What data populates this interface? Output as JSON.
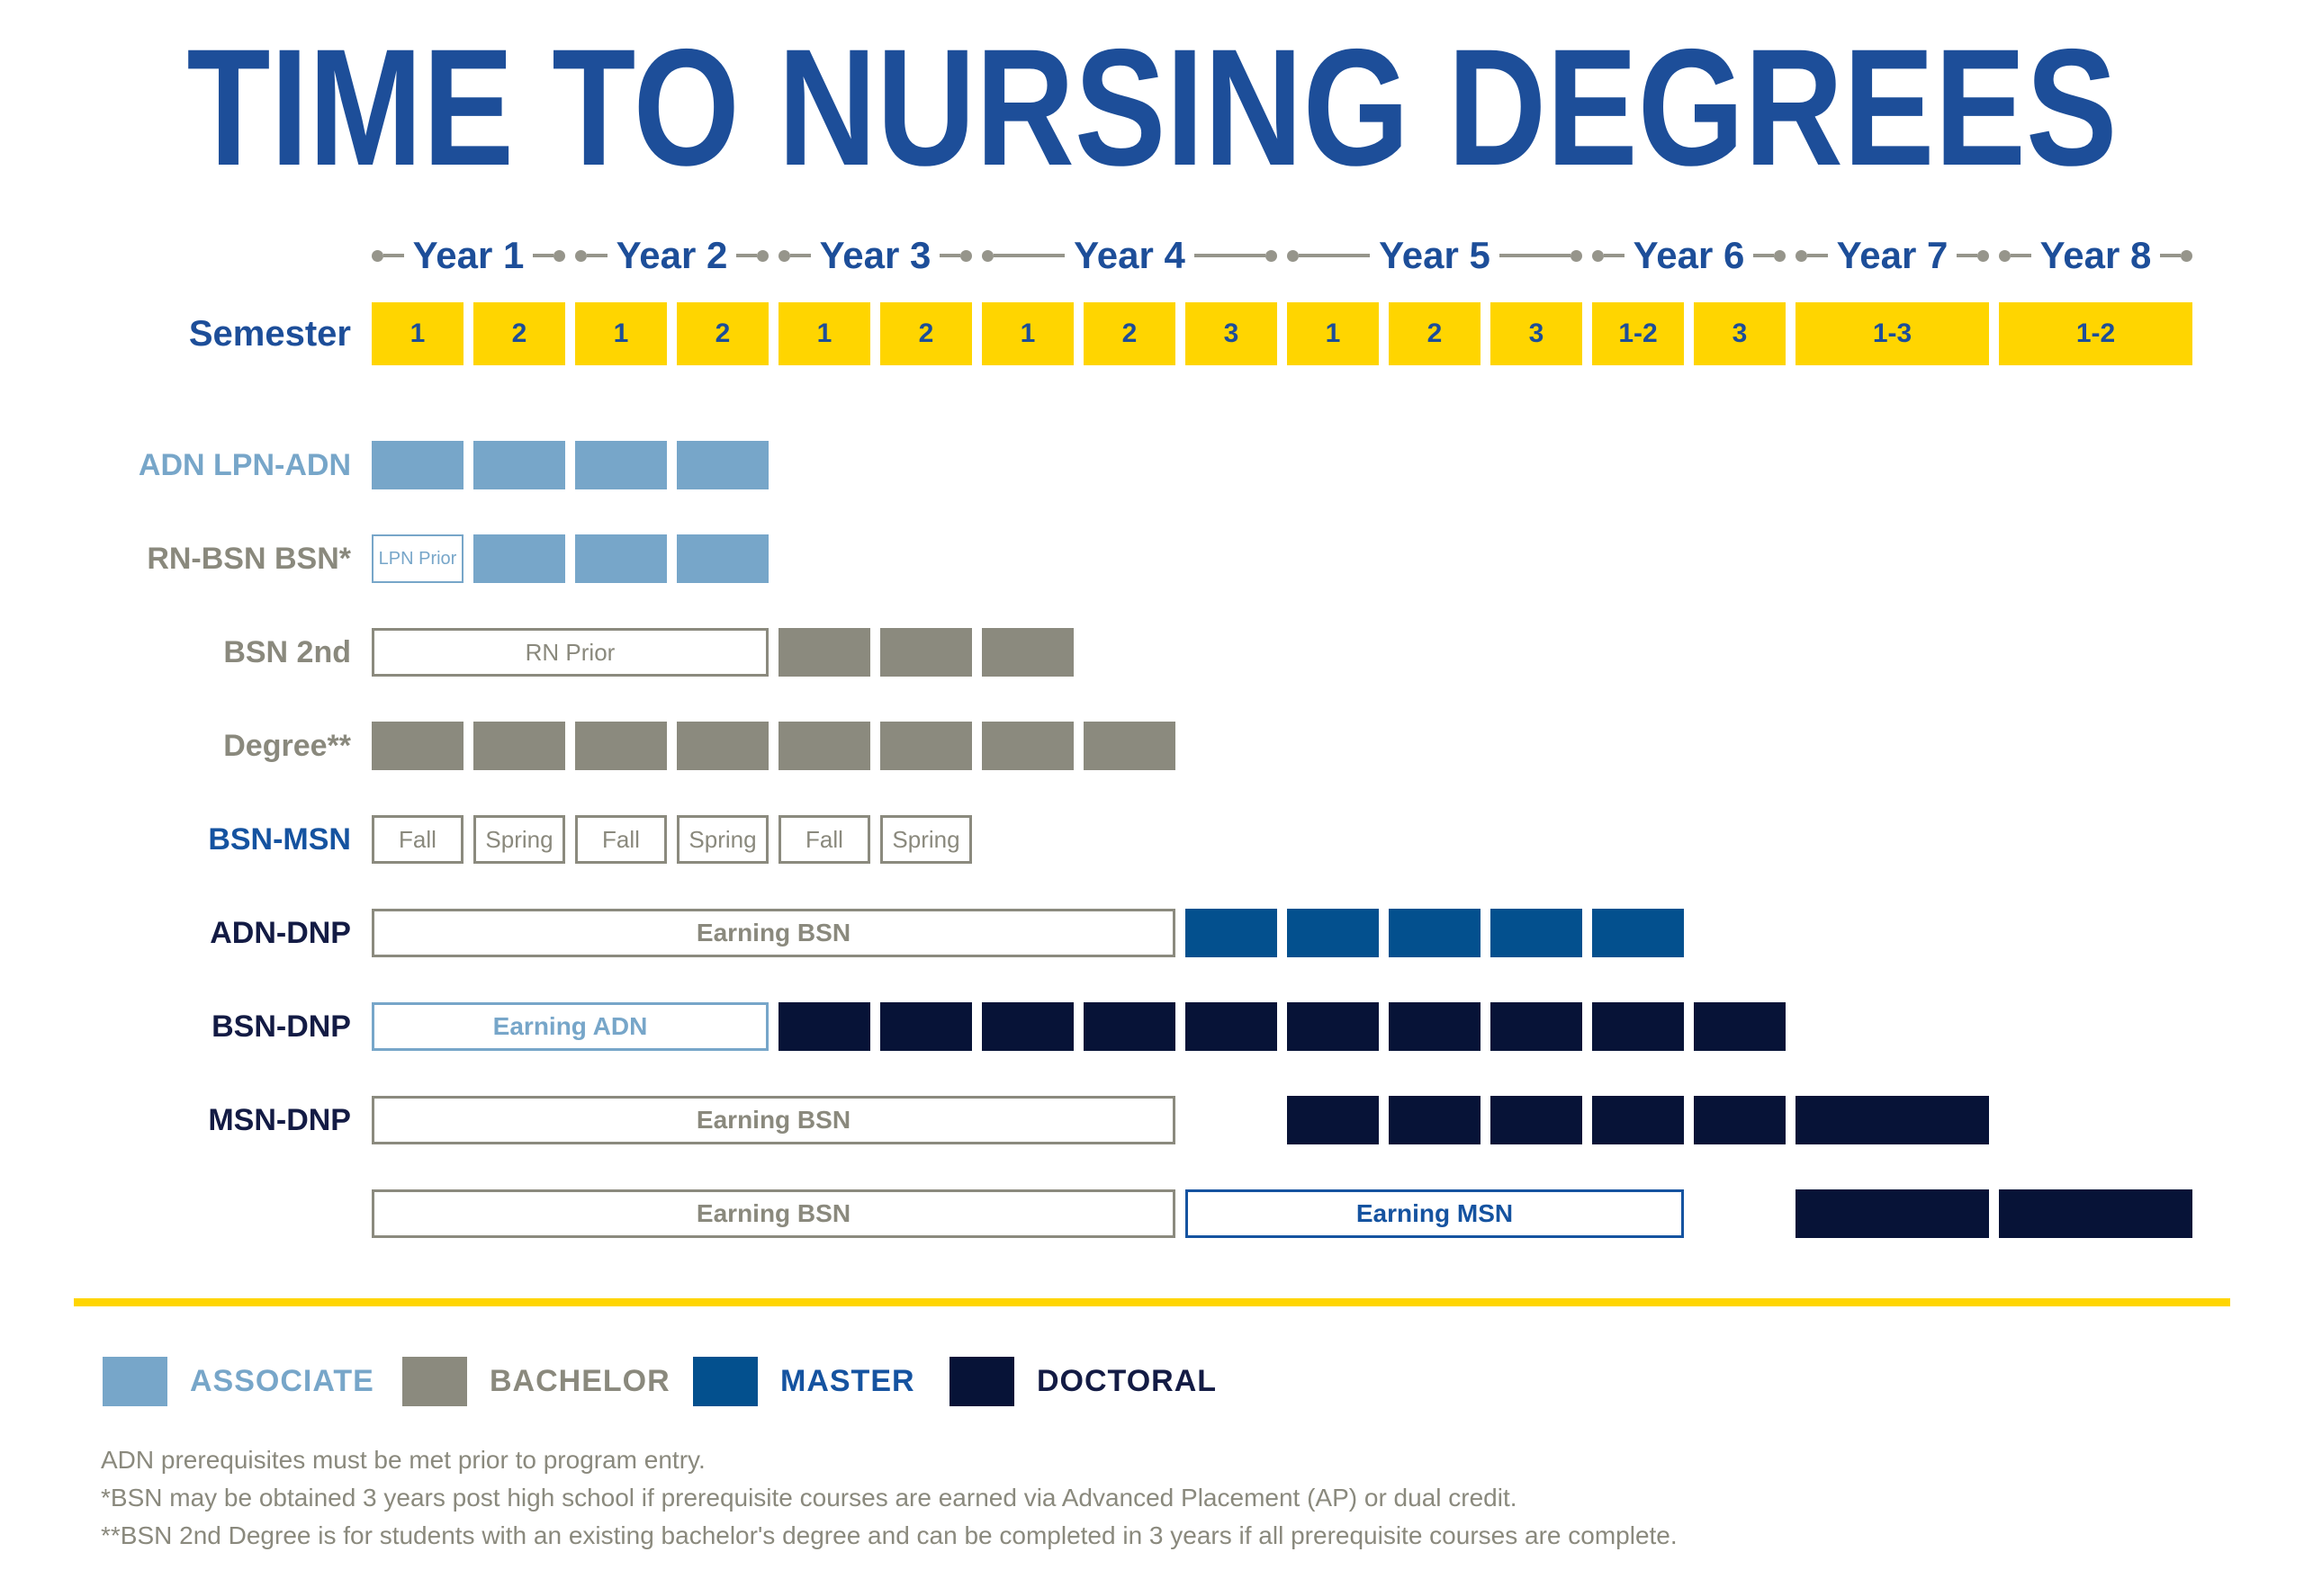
{
  "title": "TIME TO NURSING DEGREES",
  "colors": {
    "blue": "#1d4e99",
    "yellow": "#ffd500",
    "associate": "#77a6c9",
    "bachelor": "#8b8a7e",
    "gray_text": "#8a897d",
    "master": "#03508e",
    "master_text": "#1553a0",
    "doctoral": "#071337",
    "doctoral_text": "#131b44",
    "marker_gray": "#96958b"
  },
  "timeline": {
    "semester_label": "Semester",
    "years": [
      {
        "label": "Year 1",
        "col": 1,
        "span": 2
      },
      {
        "label": "Year 2",
        "col": 3,
        "span": 2
      },
      {
        "label": "Year 3",
        "col": 5,
        "span": 2
      },
      {
        "label": "Year 4",
        "col": 7,
        "span": 3
      },
      {
        "label": "Year 5",
        "col": 10,
        "span": 3
      },
      {
        "label": "Year 6",
        "col": 13,
        "span": 2
      },
      {
        "label": "Year 7",
        "col": 15,
        "span": 1
      },
      {
        "label": "Year 8",
        "col": 16,
        "span": 1
      }
    ],
    "semesters": [
      "1",
      "2",
      "1",
      "2",
      "1",
      "2",
      "1",
      "2",
      "3",
      "1",
      "2",
      "3",
      "1-2",
      "3",
      "1-3",
      "1-2"
    ]
  },
  "rows": [
    {
      "label": "ADN LPN-ADN",
      "label_color": "associate",
      "cells": [
        {
          "type": "bar",
          "color": "associate",
          "col": 1
        },
        {
          "type": "bar",
          "color": "associate",
          "col": 2
        },
        {
          "type": "bar",
          "color": "associate",
          "col": 3
        },
        {
          "type": "bar",
          "color": "associate",
          "col": 4
        }
      ]
    },
    {
      "label": "RN-BSN BSN*",
      "label_color": "gray_text",
      "cells": [
        {
          "type": "box",
          "border": "associate",
          "text": "LPN Prior",
          "text_color": "associate",
          "col": 1,
          "font_size": 20,
          "border_width": 2
        },
        {
          "type": "bar",
          "color": "associate",
          "col": 2
        },
        {
          "type": "bar",
          "color": "associate",
          "col": 3
        },
        {
          "type": "bar",
          "color": "associate",
          "col": 4
        }
      ]
    },
    {
      "label": "BSN 2nd",
      "label_color": "gray_text",
      "cells": [
        {
          "type": "box",
          "border": "bachelor",
          "text": "RN Prior",
          "text_color": "gray_text",
          "col": 1,
          "span": 4
        },
        {
          "type": "bar",
          "color": "bachelor",
          "col": 5
        },
        {
          "type": "bar",
          "color": "bachelor",
          "col": 6
        },
        {
          "type": "bar",
          "color": "bachelor",
          "col": 7
        }
      ]
    },
    {
      "label": "Degree**",
      "label_color": "gray_text",
      "cells": [
        {
          "type": "bar",
          "color": "bachelor",
          "col": 1
        },
        {
          "type": "bar",
          "color": "bachelor",
          "col": 2
        },
        {
          "type": "bar",
          "color": "bachelor",
          "col": 3
        },
        {
          "type": "bar",
          "color": "bachelor",
          "col": 4
        },
        {
          "type": "bar",
          "color": "bachelor",
          "col": 5
        },
        {
          "type": "bar",
          "color": "bachelor",
          "col": 6
        },
        {
          "type": "bar",
          "color": "bachelor",
          "col": 7
        },
        {
          "type": "bar",
          "color": "bachelor",
          "col": 8
        }
      ]
    },
    {
      "label": "BSN-MSN",
      "label_color": "master_text",
      "cells": [
        {
          "type": "box",
          "border": "bachelor",
          "text": "Fall",
          "text_color": "gray_text",
          "col": 1
        },
        {
          "type": "box",
          "border": "bachelor",
          "text": "Spring",
          "text_color": "gray_text",
          "col": 2
        },
        {
          "type": "box",
          "border": "bachelor",
          "text": "Fall",
          "text_color": "gray_text",
          "col": 3
        },
        {
          "type": "box",
          "border": "bachelor",
          "text": "Spring",
          "text_color": "gray_text",
          "col": 4
        },
        {
          "type": "box",
          "border": "bachelor",
          "text": "Fall",
          "text_color": "gray_text",
          "col": 5
        },
        {
          "type": "box",
          "border": "bachelor",
          "text": "Spring",
          "text_color": "gray_text",
          "col": 6
        }
      ]
    },
    {
      "label": "ADN-DNP",
      "label_color": "doctoral_text",
      "cells": [
        {
          "type": "box",
          "border": "bachelor",
          "text": "Earning BSN",
          "text_color": "gray_text",
          "col": 1,
          "span": 8,
          "bold": true,
          "font_size": 28
        },
        {
          "type": "bar",
          "color": "master",
          "col": 9
        },
        {
          "type": "bar",
          "color": "master",
          "col": 10
        },
        {
          "type": "bar",
          "color": "master",
          "col": 11
        },
        {
          "type": "bar",
          "color": "master",
          "col": 12
        },
        {
          "type": "bar",
          "color": "master",
          "col": 13
        }
      ]
    },
    {
      "label": "BSN-DNP",
      "label_color": "doctoral_text",
      "cells": [
        {
          "type": "box",
          "border": "associate",
          "text": "Earning ADN",
          "text_color": "associate",
          "col": 1,
          "span": 4,
          "bold": true,
          "font_size": 28
        },
        {
          "type": "bar",
          "color": "doctoral",
          "col": 5
        },
        {
          "type": "bar",
          "color": "doctoral",
          "col": 6
        },
        {
          "type": "bar",
          "color": "doctoral",
          "col": 7
        },
        {
          "type": "bar",
          "color": "doctoral",
          "col": 8
        },
        {
          "type": "bar",
          "color": "doctoral",
          "col": 9
        },
        {
          "type": "bar",
          "color": "doctoral",
          "col": 10
        },
        {
          "type": "bar",
          "color": "doctoral",
          "col": 11
        },
        {
          "type": "bar",
          "color": "doctoral",
          "col": 12
        },
        {
          "type": "bar",
          "color": "doctoral",
          "col": 13
        },
        {
          "type": "bar",
          "color": "doctoral",
          "col": 14
        }
      ]
    },
    {
      "label": "MSN-DNP",
      "label_color": "doctoral_text",
      "cells": [
        {
          "type": "box",
          "border": "bachelor",
          "text": "Earning BSN",
          "text_color": "gray_text",
          "col": 1,
          "span": 8,
          "bold": true,
          "font_size": 28
        },
        {
          "type": "bar",
          "color": "doctoral",
          "col": 10
        },
        {
          "type": "bar",
          "color": "doctoral",
          "col": 11
        },
        {
          "type": "bar",
          "color": "doctoral",
          "col": 12
        },
        {
          "type": "bar",
          "color": "doctoral",
          "col": 13
        },
        {
          "type": "bar",
          "color": "doctoral",
          "col": 14
        },
        {
          "type": "bar",
          "color": "doctoral",
          "col": 15
        }
      ]
    },
    {
      "label": "",
      "label_color": "doctoral_text",
      "cells": [
        {
          "type": "box",
          "border": "bachelor",
          "text": "Earning BSN",
          "text_color": "gray_text",
          "col": 1,
          "span": 8,
          "bold": true,
          "font_size": 28
        },
        {
          "type": "box",
          "border": "master_text",
          "text": "Earning MSN",
          "text_color": "master_text",
          "col": 9,
          "span": 5,
          "bold": true,
          "font_size": 28
        },
        {
          "type": "bar",
          "color": "doctoral",
          "col": 15
        },
        {
          "type": "bar",
          "color": "doctoral",
          "col": 16
        }
      ]
    }
  ],
  "legend": [
    {
      "label": "ASSOCIATE",
      "color": "associate",
      "text_color": "associate"
    },
    {
      "label": "BACHELOR",
      "color": "bachelor",
      "text_color": "gray_text"
    },
    {
      "label": "MASTER",
      "color": "master",
      "text_color": "master_text"
    },
    {
      "label": "DOCTORAL",
      "color": "doctoral",
      "text_color": "doctoral_text"
    }
  ],
  "footnotes": [
    "ADN prerequisites must be met prior to program entry.",
    "*BSN may be obtained 3 years post high school if prerequisite courses are earned via Advanced Placement (AP) or dual credit.",
    "**BSN 2nd Degree is for students with an existing bachelor's degree and can be completed in 3 years if all prerequisite courses are complete."
  ],
  "chart_data": {
    "type": "table",
    "subtype": "timeline_gantt",
    "title": "TIME TO NURSING DEGREES",
    "columns": [
      "Y1 S1",
      "Y1 S2",
      "Y2 S1",
      "Y2 S2",
      "Y3 S1",
      "Y3 S2",
      "Y4 S1",
      "Y4 S2",
      "Y4 S3",
      "Y5 S1",
      "Y5 S2",
      "Y5 S3",
      "Y6 S1-2",
      "Y6 S3",
      "Y7 S1-3",
      "Y8 S1-2"
    ],
    "legend_entries": [
      "ASSOCIATE",
      "BACHELOR",
      "MASTER",
      "DOCTORAL"
    ],
    "programs": [
      {
        "label": "ADN LPN-ADN",
        "segments": [
          {
            "level": "associate",
            "style": "filled",
            "cols": "1-4"
          }
        ]
      },
      {
        "label": "RN-BSN BSN*",
        "segments": [
          {
            "text": "LPN Prior",
            "style": "outlined",
            "cols": "1"
          },
          {
            "level": "associate",
            "style": "filled",
            "cols": "2-4"
          }
        ]
      },
      {
        "label": "BSN 2nd",
        "segments": [
          {
            "text": "RN Prior",
            "style": "outlined",
            "cols": "1-4"
          },
          {
            "level": "bachelor",
            "style": "filled",
            "cols": "5-7"
          }
        ]
      },
      {
        "label": "Degree**",
        "segments": [
          {
            "level": "bachelor",
            "style": "filled",
            "cols": "1-8"
          }
        ]
      },
      {
        "label": "BSN-MSN",
        "segments": [
          {
            "texts": [
              "Fall",
              "Spring",
              "Fall",
              "Spring",
              "Fall",
              "Spring"
            ],
            "style": "outlined",
            "cols": "1-6"
          }
        ]
      },
      {
        "label": "ADN-DNP",
        "segments": [
          {
            "text": "Earning BSN",
            "style": "outlined",
            "cols": "1-8"
          },
          {
            "level": "master",
            "style": "filled",
            "cols": "9-13"
          }
        ]
      },
      {
        "label": "BSN-DNP",
        "segments": [
          {
            "text": "Earning ADN",
            "style": "outlined",
            "cols": "1-4"
          },
          {
            "level": "doctoral",
            "style": "filled",
            "cols": "5-14"
          }
        ]
      },
      {
        "label": "MSN-DNP",
        "segments": [
          {
            "text": "Earning BSN",
            "style": "outlined",
            "cols": "1-8"
          },
          {
            "level": "doctoral",
            "style": "filled",
            "cols": "10-15"
          }
        ]
      },
      {
        "label": "",
        "segments": [
          {
            "text": "Earning BSN",
            "style": "outlined",
            "cols": "1-8"
          },
          {
            "text": "Earning MSN",
            "style": "outlined",
            "cols": "9-13"
          },
          {
            "level": "doctoral",
            "style": "filled",
            "cols": "15-16"
          }
        ]
      }
    ]
  }
}
